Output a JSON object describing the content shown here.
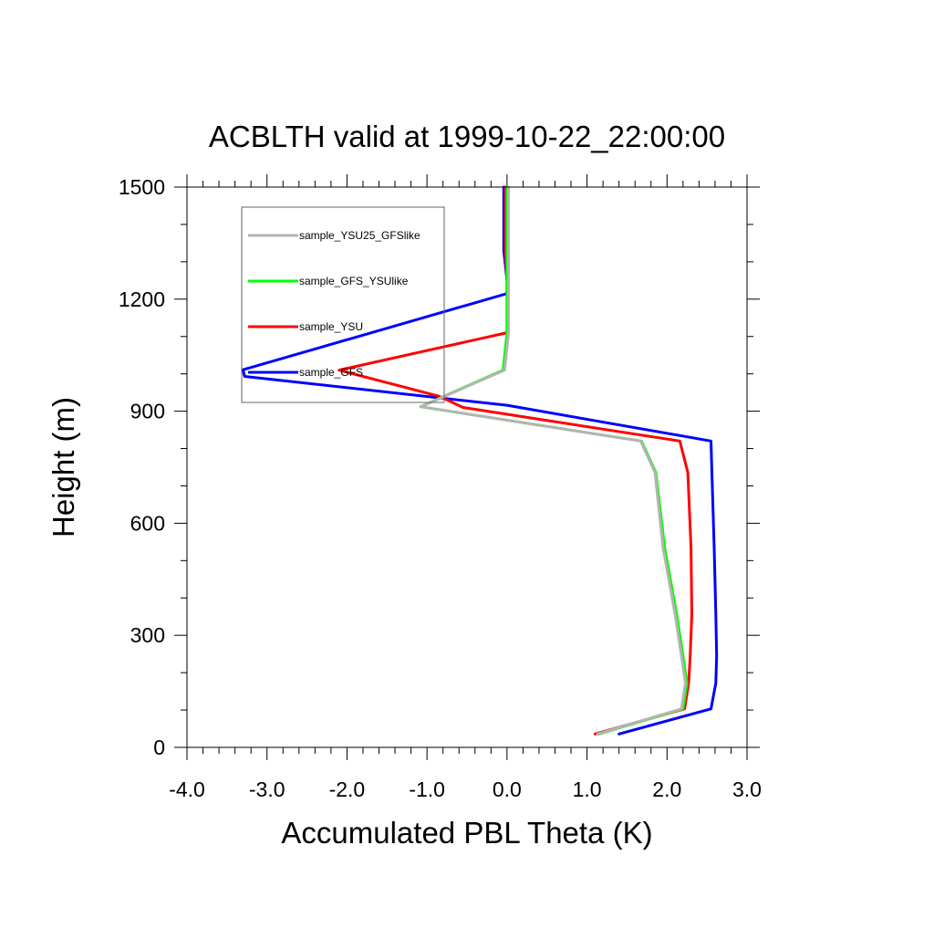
{
  "chart_data": {
    "type": "line",
    "title": "ACBLTH valid at 1999-10-22_22:00:00",
    "xlabel": "Accumulated PBL Theta (K)",
    "ylabel": "Height (m)",
    "xlim": [
      -4.0,
      3.0
    ],
    "ylim": [
      0,
      1500
    ],
    "x_ticks": [
      -4.0,
      -3.0,
      -2.0,
      -1.0,
      0.0,
      1.0,
      2.0,
      3.0
    ],
    "x_tick_labels": [
      "-4.0",
      "-3.0",
      "-2.0",
      "-1.0",
      "0.0",
      "1.0",
      "2.0",
      "3.0"
    ],
    "x_minor_step": 0.2,
    "y_ticks": [
      0,
      300,
      600,
      900,
      1200,
      1500
    ],
    "y_tick_labels": [
      "0",
      "300",
      "600",
      "900",
      "1200",
      "1500"
    ],
    "y_minor_step": 100,
    "grid": false,
    "legend_position": "top-left",
    "series": [
      {
        "name": "sample_GFS",
        "color": "#0000ff",
        "points": [
          [
            1.4,
            36
          ],
          [
            2.55,
            103
          ],
          [
            2.61,
            172
          ],
          [
            2.62,
            245
          ],
          [
            2.61,
            357
          ],
          [
            2.59,
            535
          ],
          [
            2.56,
            744
          ],
          [
            2.55,
            820
          ],
          [
            0.0,
            916
          ],
          [
            -3.28,
            993
          ],
          [
            -3.3,
            1011
          ],
          [
            0.0,
            1215
          ],
          [
            0.0,
            1250
          ],
          [
            -0.04,
            1330
          ],
          [
            -0.04,
            1400
          ],
          [
            -0.04,
            1500
          ]
        ]
      },
      {
        "name": "sample_YSU",
        "color": "#ff0000",
        "points": [
          [
            1.1,
            36
          ],
          [
            2.22,
            103
          ],
          [
            2.27,
            172
          ],
          [
            2.29,
            245
          ],
          [
            2.31,
            357
          ],
          [
            2.3,
            535
          ],
          [
            2.26,
            736
          ],
          [
            2.16,
            820
          ],
          [
            -0.55,
            910
          ],
          [
            -0.85,
            940
          ],
          [
            -2.1,
            1010
          ],
          [
            0.0,
            1110
          ],
          [
            0.0,
            1250
          ],
          [
            -0.02,
            1330
          ],
          [
            -0.02,
            1400
          ],
          [
            -0.02,
            1500
          ]
        ]
      },
      {
        "name": "sample_GFS_YSUlike",
        "color": "#00ff00",
        "points": [
          [
            1.15,
            36
          ],
          [
            2.2,
            103
          ],
          [
            2.25,
            172
          ],
          [
            2.2,
            245
          ],
          [
            2.12,
            357
          ],
          [
            1.97,
            535
          ],
          [
            1.86,
            736
          ],
          [
            1.68,
            820
          ],
          [
            -1.08,
            912
          ],
          [
            -0.05,
            1010
          ],
          [
            0.0,
            1110
          ],
          [
            0.0,
            1250
          ],
          [
            0.0,
            1330
          ],
          [
            0.0,
            1400
          ],
          [
            0.0,
            1500
          ]
        ]
      },
      {
        "name": "sample_YSU25_GFSlike",
        "color": "#b4b4b4",
        "points": [
          [
            1.13,
            36
          ],
          [
            2.18,
            103
          ],
          [
            2.23,
            172
          ],
          [
            2.18,
            245
          ],
          [
            2.1,
            357
          ],
          [
            1.95,
            535
          ],
          [
            1.85,
            736
          ],
          [
            1.67,
            820
          ],
          [
            -1.08,
            912
          ],
          [
            -0.03,
            1010
          ],
          [
            0.02,
            1110
          ],
          [
            0.02,
            1250
          ],
          [
            0.02,
            1330
          ],
          [
            0.02,
            1400
          ],
          [
            0.02,
            1500
          ]
        ]
      }
    ],
    "legend_order": [
      "sample_YSU25_GFSlike",
      "sample_GFS_YSUlike",
      "sample_YSU",
      "sample_GFS"
    ]
  }
}
